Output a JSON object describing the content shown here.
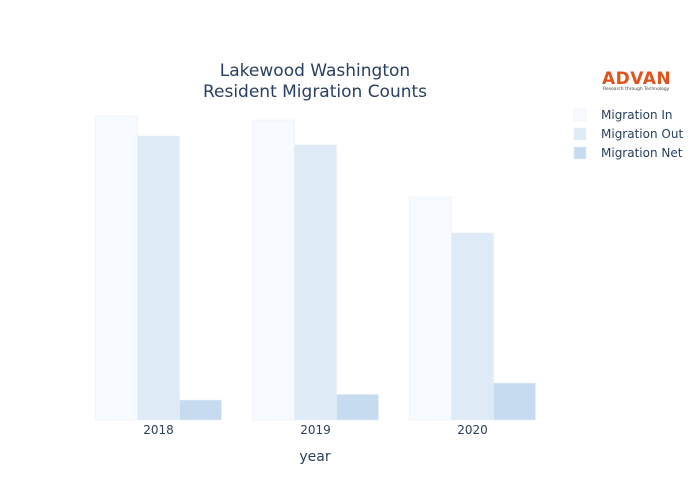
{
  "chart_data": {
    "type": "bar",
    "title_line1": "Lakewood Washington",
    "title_line2": "Resident Migration Counts",
    "xlabel": "year",
    "ylabel": "",
    "categories": [
      "2018",
      "2019",
      "2020"
    ],
    "series": [
      {
        "name": "Migration In",
        "values": [
          1520,
          1500,
          1115
        ],
        "color": "#f7fbff"
      },
      {
        "name": "Migration Out",
        "values": [
          1420,
          1375,
          935
        ],
        "color": "#deebf7"
      },
      {
        "name": "Migration Net",
        "values": [
          100,
          128,
          185
        ],
        "color": "#c6dbef"
      }
    ],
    "ylim": [
      0,
      1600
    ],
    "grid": false,
    "legend_position": "top-right"
  },
  "logo": {
    "name": "ADVAN",
    "tagline": "Research through Technology",
    "color": "#e0531f"
  }
}
